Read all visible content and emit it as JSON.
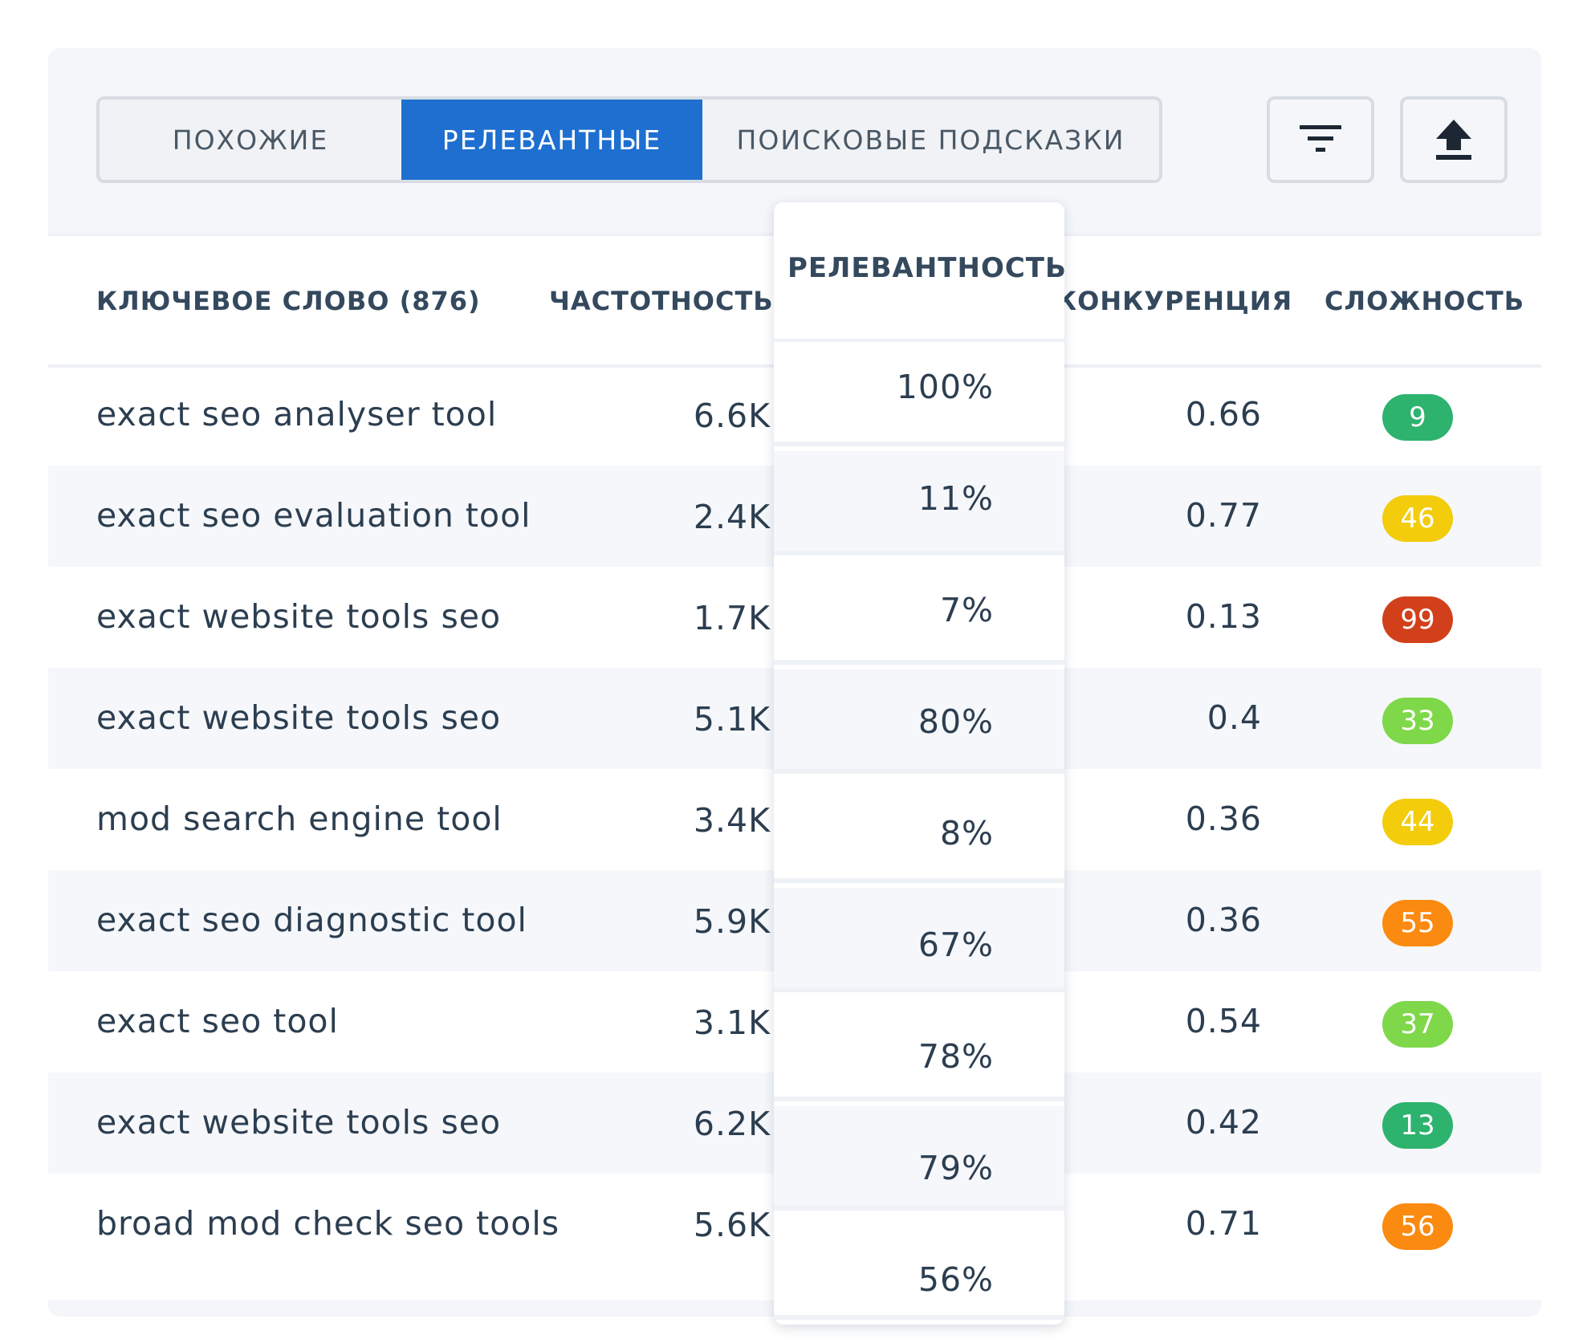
{
  "tabs": [
    "ПОХОЖИЕ",
    "РЕЛЕВАНТНЫЕ",
    "ПОИСКОВЫЕ ПОДСКАЗКИ"
  ],
  "active_tab": "РЕЛЕВАНТНЫЕ",
  "toolbar": {
    "filter_icon": "filter-icon",
    "export_icon": "export-upload-icon"
  },
  "columns": {
    "keyword": "КЛЮЧЕВОЕ СЛОВО (876)",
    "frequency": "ЧАСТОТНОСТЬ",
    "relevance": "РЕЛЕВАНТНОСТЬ",
    "competition": "КОНКУРЕНЦИЯ",
    "difficulty": "СЛОЖНОСТЬ"
  },
  "rows": [
    {
      "keyword": "exact seo analyser tool",
      "frequency": "6.6K",
      "relevance": "100%",
      "competition": "0.66",
      "difficulty": "9",
      "difficulty_color": "#2db36e"
    },
    {
      "keyword": "exact seo evaluation tool",
      "frequency": "2.4K",
      "relevance": "11%",
      "competition": "0.77",
      "difficulty": "46",
      "difficulty_color": "#f3cc0c"
    },
    {
      "keyword": "exact website tools seo",
      "frequency": "1.7K",
      "relevance": "7%",
      "competition": "0.13",
      "difficulty": "99",
      "difficulty_color": "#d2401b"
    },
    {
      "keyword": "exact website tools seo",
      "frequency": "5.1K",
      "relevance": "80%",
      "competition": "0.4",
      "difficulty": "33",
      "difficulty_color": "#7ed84a"
    },
    {
      "keyword": "mod search engine tool",
      "frequency": "3.4K",
      "relevance": "8%",
      "competition": "0.36",
      "difficulty": "44",
      "difficulty_color": "#f3cc0c"
    },
    {
      "keyword": "exact seo diagnostic tool",
      "frequency": "5.9K",
      "relevance": "67%",
      "competition": "0.36",
      "difficulty": "55",
      "difficulty_color": "#fb8a10"
    },
    {
      "keyword": "exact seo tool",
      "frequency": "3.1K",
      "relevance": "78%",
      "competition": "0.54",
      "difficulty": "37",
      "difficulty_color": "#7ed84a"
    },
    {
      "keyword": "exact website tools seo",
      "frequency": "6.2K",
      "relevance": "79%",
      "competition": "0.42",
      "difficulty": "13",
      "difficulty_color": "#2db36e"
    },
    {
      "keyword": "broad mod check seo tools",
      "frequency": "5.6K",
      "relevance": "56%",
      "competition": "0.71",
      "difficulty": "56",
      "difficulty_color": "#fb8a10"
    }
  ]
}
